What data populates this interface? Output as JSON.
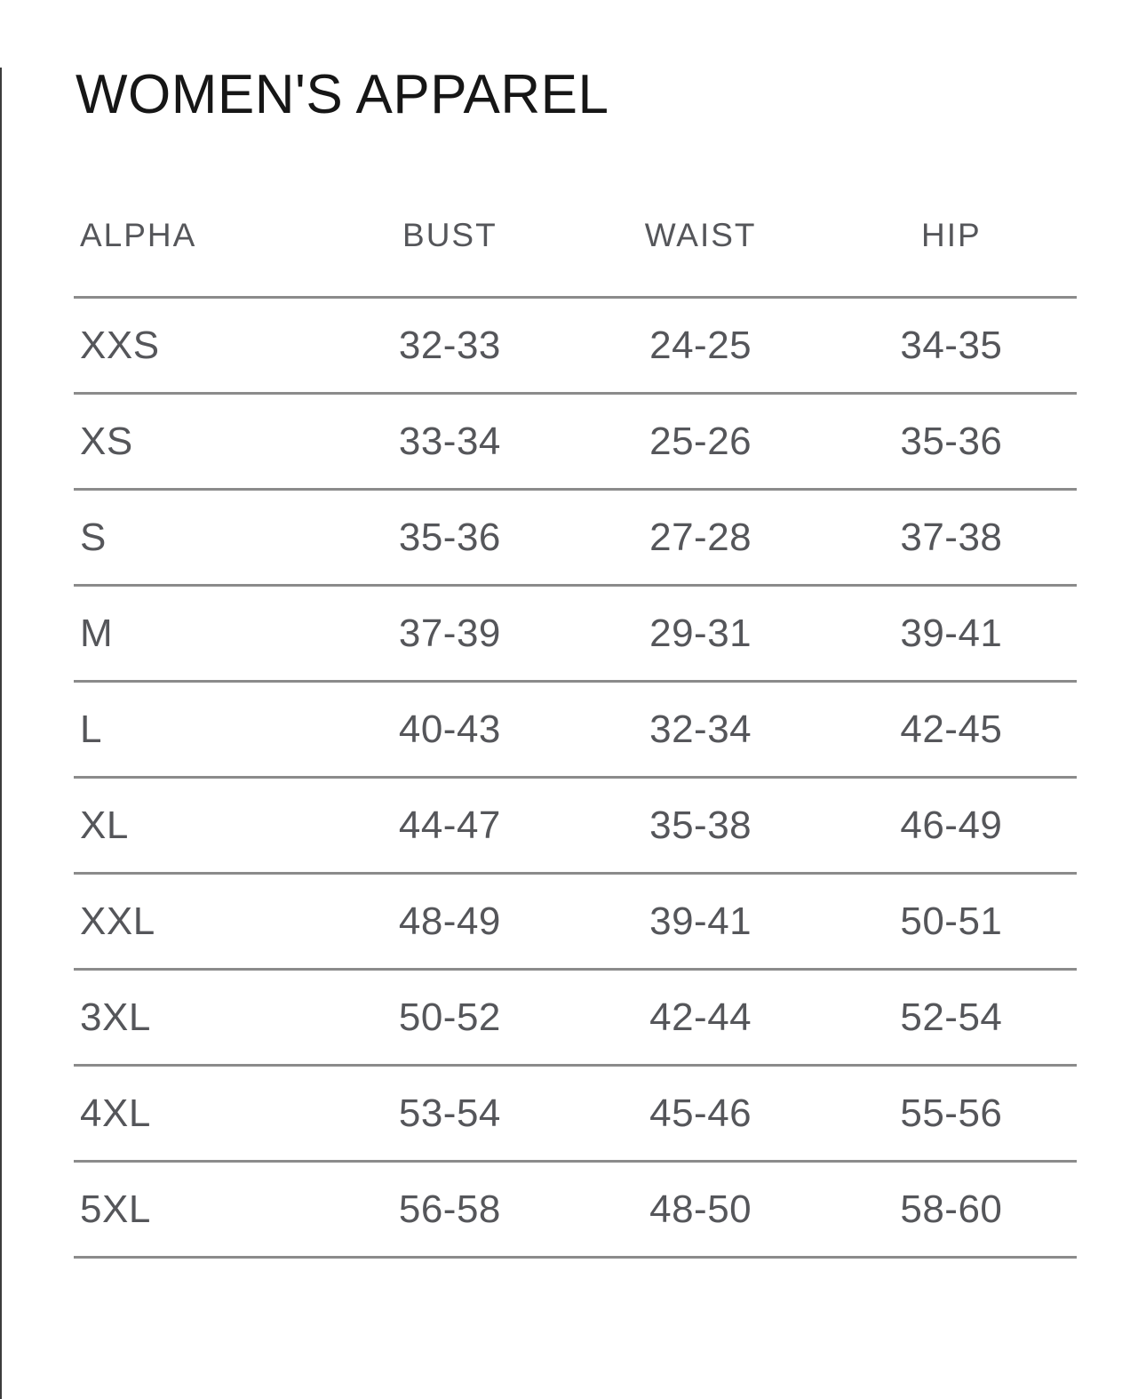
{
  "page": {
    "title": "WOMEN'S APPAREL"
  },
  "size_chart": {
    "columns": [
      "ALPHA",
      "BUST",
      "WAIST",
      "HIP"
    ],
    "rows": [
      {
        "alpha": "XXS",
        "bust": "32-33",
        "waist": "24-25",
        "hip": "34-35"
      },
      {
        "alpha": "XS",
        "bust": "33-34",
        "waist": "25-26",
        "hip": "35-36"
      },
      {
        "alpha": "S",
        "bust": "35-36",
        "waist": "27-28",
        "hip": "37-38"
      },
      {
        "alpha": "M",
        "bust": "37-39",
        "waist": "29-31",
        "hip": "39-41"
      },
      {
        "alpha": "L",
        "bust": "40-43",
        "waist": "32-34",
        "hip": "42-45"
      },
      {
        "alpha": "XL",
        "bust": "44-47",
        "waist": "35-38",
        "hip": "46-49"
      },
      {
        "alpha": "XXL",
        "bust": "48-49",
        "waist": "39-41",
        "hip": "50-51"
      },
      {
        "alpha": "3XL",
        "bust": "50-52",
        "waist": "42-44",
        "hip": "52-54"
      },
      {
        "alpha": "4XL",
        "bust": "53-54",
        "waist": "45-46",
        "hip": "55-56"
      },
      {
        "alpha": "5XL",
        "bust": "56-58",
        "waist": "48-50",
        "hip": "58-60"
      }
    ]
  },
  "colors": {
    "title": "#161616",
    "table_text": "#55565a",
    "divider": "#8b8b8b",
    "left_border": "#3c3c3c",
    "background": "#ffffff"
  }
}
